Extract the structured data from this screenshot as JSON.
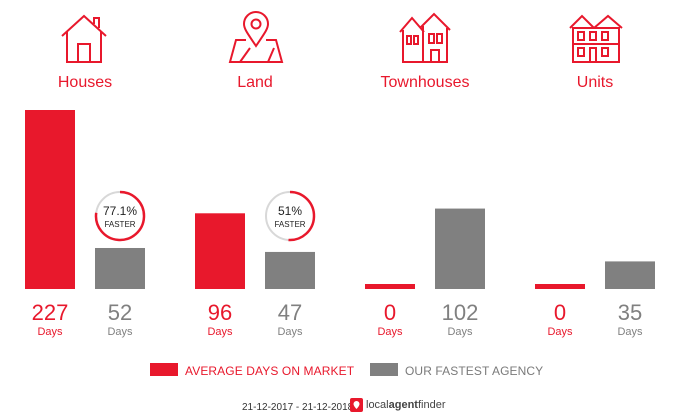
{
  "categories": [
    {
      "label": "Houses",
      "icon": "house-icon"
    },
    {
      "label": "Land",
      "icon": "map-pin-icon"
    },
    {
      "label": "Townhouses",
      "icon": "townhouse-icon"
    },
    {
      "label": "Units",
      "icon": "units-building-icon"
    }
  ],
  "colors": {
    "accent": "#e8182c",
    "grey": "#808080",
    "badge_ring": "#d8d8d8"
  },
  "legend": {
    "market": "AVERAGE DAYS ON MARKET",
    "agency": "OUR FASTEST AGENCY"
  },
  "unit_label": "Days",
  "badges": [
    {
      "category": "Houses",
      "percent": "77.1%",
      "text": "FASTER"
    },
    {
      "category": "Land",
      "percent": "51%",
      "text": "FASTER"
    }
  ],
  "footer": {
    "date_range": "21-12-2017 - 21-12-2018",
    "brand_regular": "local",
    "brand_bold": "agent",
    "brand_end": "finder"
  },
  "chart_data": {
    "type": "bar",
    "categories": [
      "Houses",
      "Land",
      "Townhouses",
      "Units"
    ],
    "series": [
      {
        "name": "AVERAGE DAYS ON MARKET",
        "values": [
          227,
          96,
          0,
          0
        ],
        "color": "#e8182c"
      },
      {
        "name": "OUR FASTEST AGENCY",
        "values": [
          52,
          47,
          102,
          35
        ],
        "color": "#808080"
      }
    ],
    "ylabel": "Days",
    "ylim": [
      0,
      227
    ],
    "grid": false,
    "legend": "bottom"
  }
}
